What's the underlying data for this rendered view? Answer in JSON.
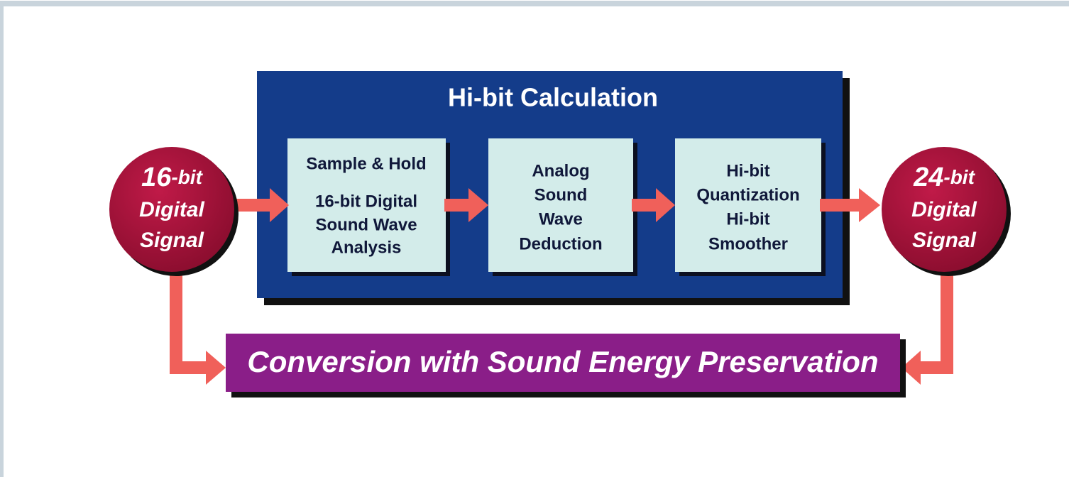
{
  "input": {
    "number": "16",
    "unit": "-bit",
    "lines": [
      "Digital",
      "Signal"
    ]
  },
  "output": {
    "number": "24",
    "unit": "-bit",
    "lines": [
      "Digital",
      "Signal"
    ]
  },
  "process": {
    "title": "Hi-bit Calculation",
    "steps": [
      {
        "lines": [
          "Sample & Hold",
          "16-bit Digital",
          "Sound Wave",
          "Analysis"
        ]
      },
      {
        "lines": [
          "Analog",
          "Sound",
          "Wave",
          "Deduction"
        ]
      },
      {
        "lines": [
          "Hi-bit",
          "Quantization",
          "Hi-bit",
          "Smoother"
        ]
      }
    ]
  },
  "conversion": {
    "label": "Conversion with Sound Energy Preservation"
  }
}
